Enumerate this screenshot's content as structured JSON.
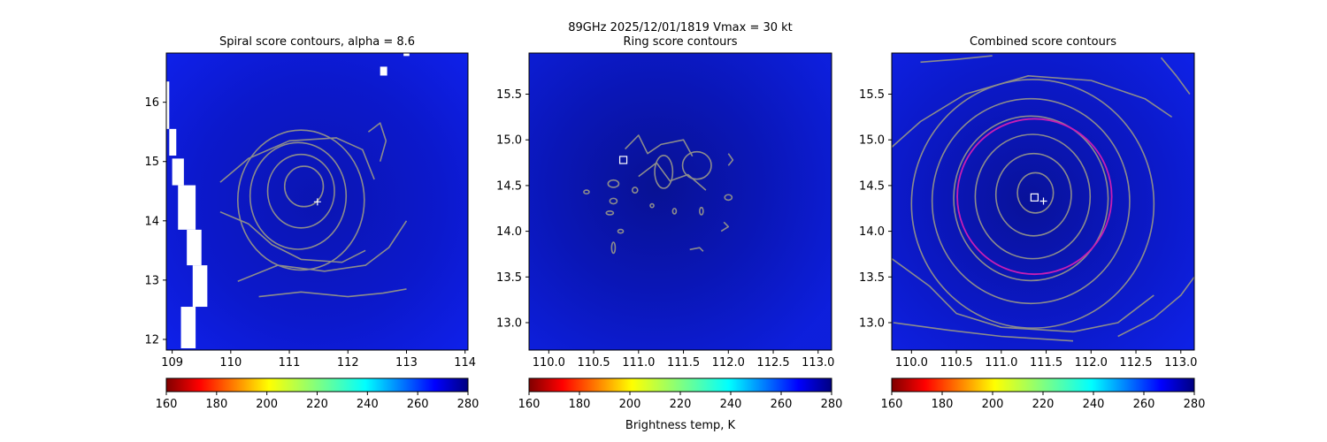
{
  "suptitle": {
    "line1": "89GHz  2025/12/01/1819    Vmax = 30 kt"
  },
  "colorbar_label": "Brightness temp, K",
  "chart_data": [
    {
      "type": "heatmap",
      "title": "Spiral score contours, alpha =  8.6",
      "xlim": [
        108.9,
        114.05
      ],
      "ylim": [
        11.82,
        16.83
      ],
      "xticks": [
        {
          "v": 109,
          "label": "109"
        },
        {
          "v": 110,
          "label": "110"
        },
        {
          "v": 111,
          "label": "111"
        },
        {
          "v": 112,
          "label": "112"
        },
        {
          "v": 113,
          "label": "113"
        },
        {
          "v": 114,
          "label": "114"
        }
      ],
      "yticks": [
        {
          "v": 12,
          "label": "12"
        },
        {
          "v": 13,
          "label": "13"
        },
        {
          "v": 14,
          "label": "14"
        },
        {
          "v": 15,
          "label": "15"
        },
        {
          "v": 16,
          "label": "16"
        }
      ],
      "colormap": "jet_r",
      "color_range": [
        160,
        280
      ],
      "colorbar_ticks": [
        "160",
        "180",
        "200",
        "220",
        "240",
        "260",
        "280"
      ],
      "background_color": "#0d1ee6",
      "center_marker": {
        "type": "plus",
        "x": 111.48,
        "y": 14.32
      },
      "contours": [
        {
          "cx": 111.25,
          "cy": 14.58,
          "rx": 0.33,
          "ry": 0.34
        },
        {
          "cx": 111.2,
          "cy": 14.5,
          "rx": 0.57,
          "ry": 0.62
        },
        {
          "cx": 111.15,
          "cy": 14.42,
          "rx": 0.82,
          "ry": 0.9
        },
        {
          "cx": 111.2,
          "cy": 14.35,
          "rx": 1.08,
          "ry": 1.18
        }
      ],
      "open_contours": [
        [
          [
            109.82,
            14.65
          ],
          [
            110.3,
            15.05
          ],
          [
            111.0,
            15.35
          ],
          [
            111.8,
            15.4
          ],
          [
            112.25,
            15.2
          ],
          [
            112.45,
            14.7
          ]
        ],
        [
          [
            109.82,
            14.15
          ],
          [
            110.3,
            13.95
          ],
          [
            110.7,
            13.6
          ],
          [
            111.2,
            13.35
          ],
          [
            111.9,
            13.3
          ],
          [
            112.3,
            13.5
          ]
        ],
        [
          [
            110.12,
            12.98
          ],
          [
            110.8,
            13.25
          ],
          [
            111.6,
            13.15
          ],
          [
            112.3,
            13.25
          ],
          [
            112.7,
            13.55
          ],
          [
            113.0,
            14.0
          ]
        ],
        [
          [
            110.48,
            12.72
          ],
          [
            111.2,
            12.8
          ],
          [
            112.0,
            12.72
          ],
          [
            112.6,
            12.78
          ],
          [
            113.0,
            12.85
          ]
        ],
        [
          [
            112.35,
            15.5
          ],
          [
            112.55,
            15.65
          ],
          [
            112.65,
            15.35
          ],
          [
            112.55,
            15.0
          ]
        ]
      ],
      "white_gaps": [
        [
          108.9,
          15.55,
          0.05,
          0.8
        ],
        [
          108.95,
          15.1,
          0.12,
          0.45
        ],
        [
          109.0,
          14.6,
          0.2,
          0.45
        ],
        [
          109.1,
          13.85,
          0.3,
          0.75
        ],
        [
          109.25,
          13.25,
          0.25,
          0.6
        ],
        [
          109.35,
          12.55,
          0.25,
          0.7
        ],
        [
          109.15,
          11.85,
          0.25,
          0.7
        ],
        [
          112.55,
          16.45,
          0.12,
          0.15
        ],
        [
          112.95,
          16.78,
          0.1,
          0.05
        ]
      ]
    },
    {
      "type": "heatmap",
      "title": "Ring score contours",
      "xlim": [
        109.78,
        113.15
      ],
      "ylim": [
        12.7,
        15.95
      ],
      "xticks": [
        {
          "v": 110.0,
          "label": "110.0"
        },
        {
          "v": 110.5,
          "label": "110.5"
        },
        {
          "v": 111.0,
          "label": "111.0"
        },
        {
          "v": 111.5,
          "label": "111.5"
        },
        {
          "v": 112.0,
          "label": "112.0"
        },
        {
          "v": 112.5,
          "label": "112.5"
        },
        {
          "v": 113.0,
          "label": "113.0"
        }
      ],
      "yticks": [
        {
          "v": 13.0,
          "label": "13.0"
        },
        {
          "v": 13.5,
          "label": "13.5"
        },
        {
          "v": 14.0,
          "label": "14.0"
        },
        {
          "v": 14.5,
          "label": "14.5"
        },
        {
          "v": 15.0,
          "label": "15.0"
        },
        {
          "v": 15.5,
          "label": "15.5"
        }
      ],
      "colormap": "jet_r",
      "color_range": [
        160,
        280
      ],
      "colorbar_ticks": [
        "160",
        "180",
        "200",
        "220",
        "240",
        "260",
        "280"
      ],
      "background_color": "#0a18c8",
      "center_marker": {
        "type": "square",
        "x": 110.83,
        "y": 14.78
      },
      "contours": [
        {
          "cx": 111.65,
          "cy": 14.72,
          "rx": 0.16,
          "ry": 0.15
        },
        {
          "cx": 111.28,
          "cy": 14.65,
          "rx": 0.1,
          "ry": 0.18
        },
        {
          "cx": 110.72,
          "cy": 14.52,
          "rx": 0.06,
          "ry": 0.04
        },
        {
          "cx": 110.96,
          "cy": 14.45,
          "rx": 0.03,
          "ry": 0.03
        },
        {
          "cx": 112.0,
          "cy": 14.37,
          "rx": 0.04,
          "ry": 0.03
        },
        {
          "cx": 110.72,
          "cy": 14.33,
          "rx": 0.04,
          "ry": 0.03
        },
        {
          "cx": 111.4,
          "cy": 14.22,
          "rx": 0.02,
          "ry": 0.03
        },
        {
          "cx": 111.15,
          "cy": 14.28,
          "rx": 0.02,
          "ry": 0.02
        },
        {
          "cx": 110.68,
          "cy": 14.2,
          "rx": 0.04,
          "ry": 0.02
        },
        {
          "cx": 111.7,
          "cy": 14.22,
          "rx": 0.02,
          "ry": 0.04
        },
        {
          "cx": 110.72,
          "cy": 13.82,
          "rx": 0.02,
          "ry": 0.06
        },
        {
          "cx": 110.8,
          "cy": 14.0,
          "rx": 0.03,
          "ry": 0.02
        },
        {
          "cx": 110.42,
          "cy": 14.43,
          "rx": 0.03,
          "ry": 0.02
        }
      ],
      "open_contours": [
        [
          [
            110.85,
            14.9
          ],
          [
            111.0,
            15.05
          ],
          [
            111.1,
            14.85
          ],
          [
            111.25,
            14.95
          ],
          [
            111.5,
            15.0
          ],
          [
            111.6,
            14.82
          ]
        ],
        [
          [
            111.0,
            14.6
          ],
          [
            111.2,
            14.75
          ],
          [
            111.35,
            14.55
          ],
          [
            111.55,
            14.62
          ],
          [
            111.75,
            14.45
          ]
        ],
        [
          [
            112.0,
            14.85
          ],
          [
            112.05,
            14.78
          ],
          [
            112.0,
            14.72
          ]
        ],
        [
          [
            111.57,
            13.8
          ],
          [
            111.68,
            13.82
          ],
          [
            111.72,
            13.78
          ]
        ],
        [
          [
            111.92,
            14.0
          ],
          [
            112.0,
            14.05
          ],
          [
            111.95,
            14.1
          ]
        ]
      ],
      "white_gaps": []
    },
    {
      "type": "heatmap",
      "title": "Combined score contours",
      "xlim": [
        109.78,
        113.15
      ],
      "ylim": [
        12.7,
        15.95
      ],
      "xticks": [
        {
          "v": 110.0,
          "label": "110.0"
        },
        {
          "v": 110.5,
          "label": "110.5"
        },
        {
          "v": 111.0,
          "label": "111.0"
        },
        {
          "v": 111.5,
          "label": "111.5"
        },
        {
          "v": 112.0,
          "label": "112.0"
        },
        {
          "v": 112.5,
          "label": "112.5"
        },
        {
          "v": 113.0,
          "label": "113.0"
        }
      ],
      "yticks": [
        {
          "v": 13.0,
          "label": "13.0"
        },
        {
          "v": 13.5,
          "label": "13.5"
        },
        {
          "v": 14.0,
          "label": "14.0"
        },
        {
          "v": 14.5,
          "label": "14.5"
        },
        {
          "v": 15.0,
          "label": "15.0"
        },
        {
          "v": 15.5,
          "label": "15.5"
        }
      ],
      "colormap": "jet_r",
      "color_range": [
        160,
        280
      ],
      "colorbar_ticks": [
        "160",
        "180",
        "200",
        "220",
        "240",
        "260",
        "280"
      ],
      "background_color": "#0b1bd6",
      "center_marker": {
        "type": "plus",
        "x": 111.47,
        "y": 14.33
      },
      "square_marker": {
        "x": 111.37,
        "y": 14.37
      },
      "ring": {
        "cx": 111.37,
        "cy": 14.38,
        "rx": 0.86,
        "ry": 0.85,
        "color": "#c81eb4"
      },
      "contours": [
        {
          "cx": 111.38,
          "cy": 14.42,
          "rx": 0.2,
          "ry": 0.22
        },
        {
          "cx": 111.36,
          "cy": 14.4,
          "rx": 0.42,
          "ry": 0.45
        },
        {
          "cx": 111.35,
          "cy": 14.38,
          "rx": 0.64,
          "ry": 0.68
        },
        {
          "cx": 111.33,
          "cy": 14.36,
          "rx": 0.86,
          "ry": 0.9
        },
        {
          "cx": 111.33,
          "cy": 14.33,
          "rx": 1.1,
          "ry": 1.12
        },
        {
          "cx": 111.35,
          "cy": 14.3,
          "rx": 1.35,
          "ry": 1.36
        }
      ],
      "open_contours": [
        [
          [
            109.78,
            14.92
          ],
          [
            110.1,
            15.2
          ],
          [
            110.6,
            15.5
          ],
          [
            111.3,
            15.7
          ],
          [
            112.0,
            15.65
          ],
          [
            112.6,
            15.45
          ],
          [
            112.9,
            15.25
          ]
        ],
        [
          [
            109.78,
            13.7
          ],
          [
            110.2,
            13.4
          ],
          [
            110.5,
            13.1
          ],
          [
            111.0,
            12.95
          ],
          [
            111.8,
            12.9
          ],
          [
            112.3,
            13.0
          ],
          [
            112.7,
            13.3
          ]
        ],
        [
          [
            109.8,
            13.0
          ],
          [
            110.4,
            12.92
          ],
          [
            111.0,
            12.85
          ],
          [
            111.8,
            12.8
          ]
        ],
        [
          [
            112.3,
            12.85
          ],
          [
            112.7,
            13.05
          ],
          [
            113.0,
            13.3
          ],
          [
            113.15,
            13.5
          ]
        ],
        [
          [
            112.78,
            15.9
          ],
          [
            112.95,
            15.7
          ],
          [
            113.1,
            15.5
          ]
        ],
        [
          [
            110.1,
            15.85
          ],
          [
            110.5,
            15.88
          ],
          [
            110.9,
            15.92
          ]
        ]
      ],
      "white_gaps": []
    }
  ]
}
